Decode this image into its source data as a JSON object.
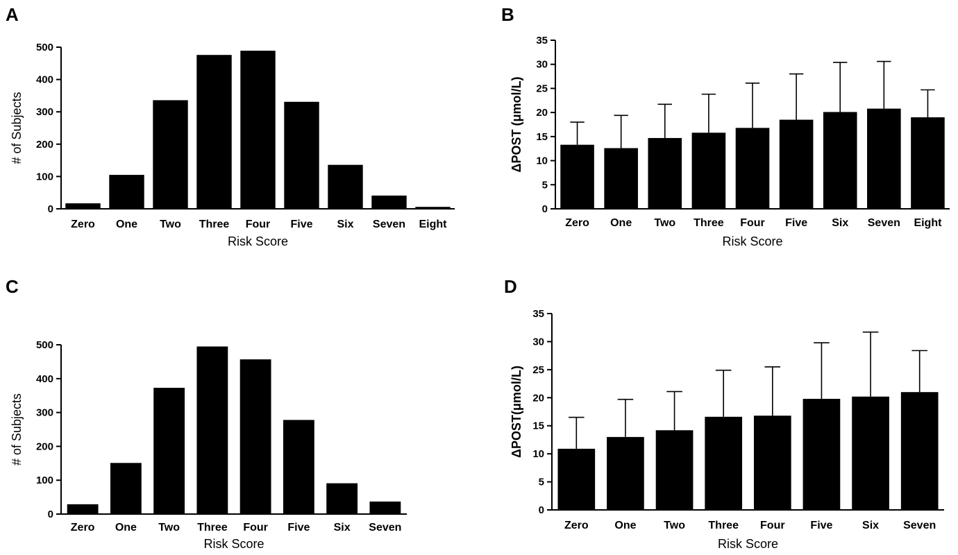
{
  "figure": {
    "panels": [
      {
        "letter": "A"
      },
      {
        "letter": "B"
      },
      {
        "letter": "C"
      },
      {
        "letter": "D"
      }
    ]
  },
  "chart_data": [
    {
      "panel": "A",
      "type": "bar",
      "categories": [
        "Zero",
        "One",
        "Two",
        "Three",
        "Four",
        "Five",
        "Six",
        "Seven",
        "Eight"
      ],
      "values": [
        17,
        105,
        336,
        476,
        489,
        331,
        136,
        41,
        6
      ],
      "xlabel": "Risk Score",
      "ylabel": "# of Subjects",
      "ylim": [
        0,
        500
      ],
      "yticks": [
        0,
        100,
        200,
        300,
        400,
        500
      ],
      "grid": false,
      "color": "#000000"
    },
    {
      "panel": "B",
      "type": "bar",
      "categories": [
        "Zero",
        "One",
        "Two",
        "Three",
        "Four",
        "Five",
        "Six",
        "Seven",
        "Eight"
      ],
      "values": [
        13.3,
        12.6,
        14.7,
        15.8,
        16.8,
        18.5,
        20.1,
        20.8,
        19.0
      ],
      "error_upper": [
        4.7,
        6.8,
        7.0,
        8.0,
        9.3,
        9.5,
        10.3,
        9.8,
        5.7
      ],
      "xlabel": "Risk Score",
      "ylabel": "ΔPOST (μmol/L)",
      "ylim": [
        0,
        35
      ],
      "yticks": [
        0,
        5,
        10,
        15,
        20,
        25,
        30,
        35
      ],
      "grid": false,
      "color": "#000000"
    },
    {
      "panel": "C",
      "type": "bar",
      "categories": [
        "Zero",
        "One",
        "Two",
        "Three",
        "Four",
        "Five",
        "Six",
        "Seven"
      ],
      "values": [
        29,
        151,
        373,
        495,
        457,
        278,
        91,
        37
      ],
      "xlabel": "Risk Score",
      "ylabel": "# of Subjects",
      "ylim": [
        0,
        500
      ],
      "yticks": [
        0,
        100,
        200,
        300,
        400,
        500
      ],
      "grid": false,
      "color": "#000000"
    },
    {
      "panel": "D",
      "type": "bar",
      "categories": [
        "Zero",
        "One",
        "Two",
        "Three",
        "Four",
        "Five",
        "Six",
        "Seven"
      ],
      "values": [
        10.9,
        13.0,
        14.2,
        16.6,
        16.8,
        19.8,
        20.2,
        21.0
      ],
      "error_upper": [
        5.6,
        6.7,
        6.9,
        8.3,
        8.7,
        10.0,
        11.5,
        7.4
      ],
      "xlabel": "Risk Score",
      "ylabel": "ΔPOST(μmol/L)",
      "ylim": [
        0,
        35
      ],
      "yticks": [
        0,
        5,
        10,
        15,
        20,
        25,
        30,
        35
      ],
      "grid": false,
      "color": "#000000"
    }
  ]
}
